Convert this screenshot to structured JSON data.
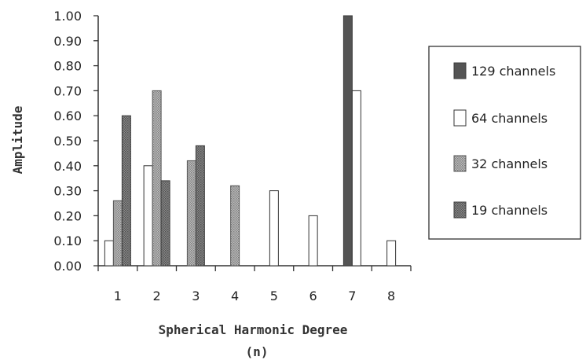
{
  "chart_data": {
    "type": "bar",
    "title": "",
    "ylabel": "Amplitude",
    "xlabel_line1": "Spherical Harmonic Degree",
    "xlabel_line2": "(n)",
    "ylim": [
      0,
      1.0
    ],
    "yticks": [
      "0.00",
      "0.10",
      "0.20",
      "0.30",
      "0.40",
      "0.50",
      "0.60",
      "0.70",
      "0.80",
      "0.90",
      "1.00"
    ],
    "categories": [
      "1",
      "2",
      "3",
      "4",
      "5",
      "6",
      "7",
      "8"
    ],
    "grid": false,
    "legend_position": "right",
    "series": [
      {
        "name": "129 channels",
        "pattern": "dark-solid",
        "color": "#555555",
        "values": [
          null,
          null,
          null,
          null,
          null,
          null,
          1.0,
          null
        ]
      },
      {
        "name": "64 channels",
        "pattern": "hollow",
        "color": "#ffffff",
        "values": [
          0.1,
          0.4,
          null,
          null,
          0.3,
          0.2,
          0.7,
          0.1
        ]
      },
      {
        "name": "32 channels",
        "pattern": "light-dots",
        "color": "#a0a0a0",
        "values": [
          0.26,
          0.7,
          0.42,
          0.32,
          null,
          null,
          null,
          null
        ]
      },
      {
        "name": "19 channels",
        "pattern": "dark-dots",
        "color": "#6f6f6f",
        "values": [
          0.6,
          0.34,
          0.48,
          null,
          null,
          null,
          null,
          null
        ]
      }
    ]
  }
}
